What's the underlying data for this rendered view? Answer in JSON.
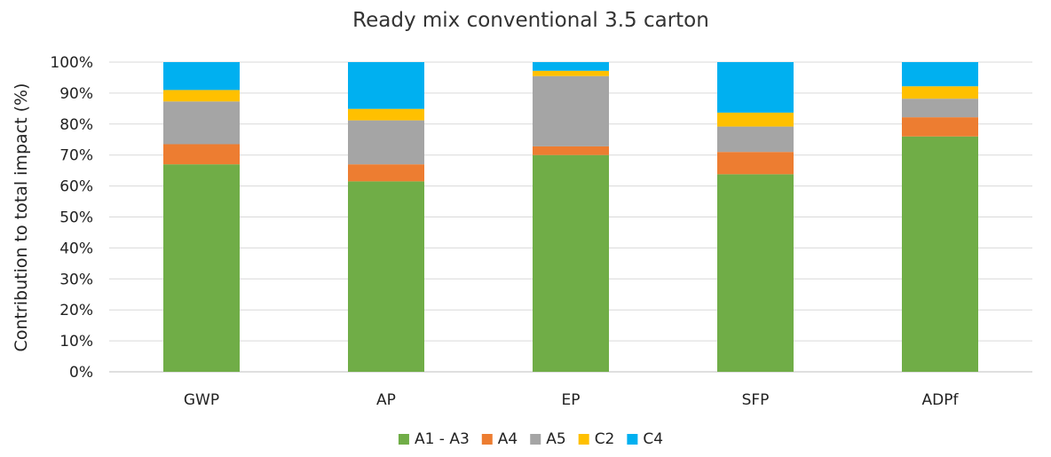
{
  "chart_data": {
    "type": "bar",
    "stacked": true,
    "title": "Ready mix conventional 3.5 carton",
    "xlabel": "",
    "ylabel": "Contribution to total impact (%)",
    "ylim": [
      0,
      100
    ],
    "y_ticks": [
      "0%",
      "10%",
      "20%",
      "30%",
      "40%",
      "50%",
      "60%",
      "70%",
      "80%",
      "90%",
      "100%"
    ],
    "categories": [
      "GWP",
      "AP",
      "EP",
      "SFP",
      "ADPf"
    ],
    "series": [
      {
        "name": "A1 - A3",
        "color": "#70ad47",
        "values": [
          67,
          61.5,
          70,
          63.8,
          76
        ]
      },
      {
        "name": "A4",
        "color": "#ed7d31",
        "values": [
          6.5,
          5.5,
          2.8,
          7.2,
          6.2
        ]
      },
      {
        "name": "A5",
        "color": "#a5a5a5",
        "values": [
          13.8,
          14.2,
          22.7,
          8.2,
          6
        ]
      },
      {
        "name": "C2",
        "color": "#ffc000",
        "values": [
          3.7,
          3.7,
          1.7,
          4.5,
          4
        ]
      },
      {
        "name": "C4",
        "color": "#00b0f0",
        "values": [
          9,
          15.1,
          2.8,
          16.3,
          7.8
        ]
      }
    ],
    "grid": true,
    "legend": "bottom"
  }
}
